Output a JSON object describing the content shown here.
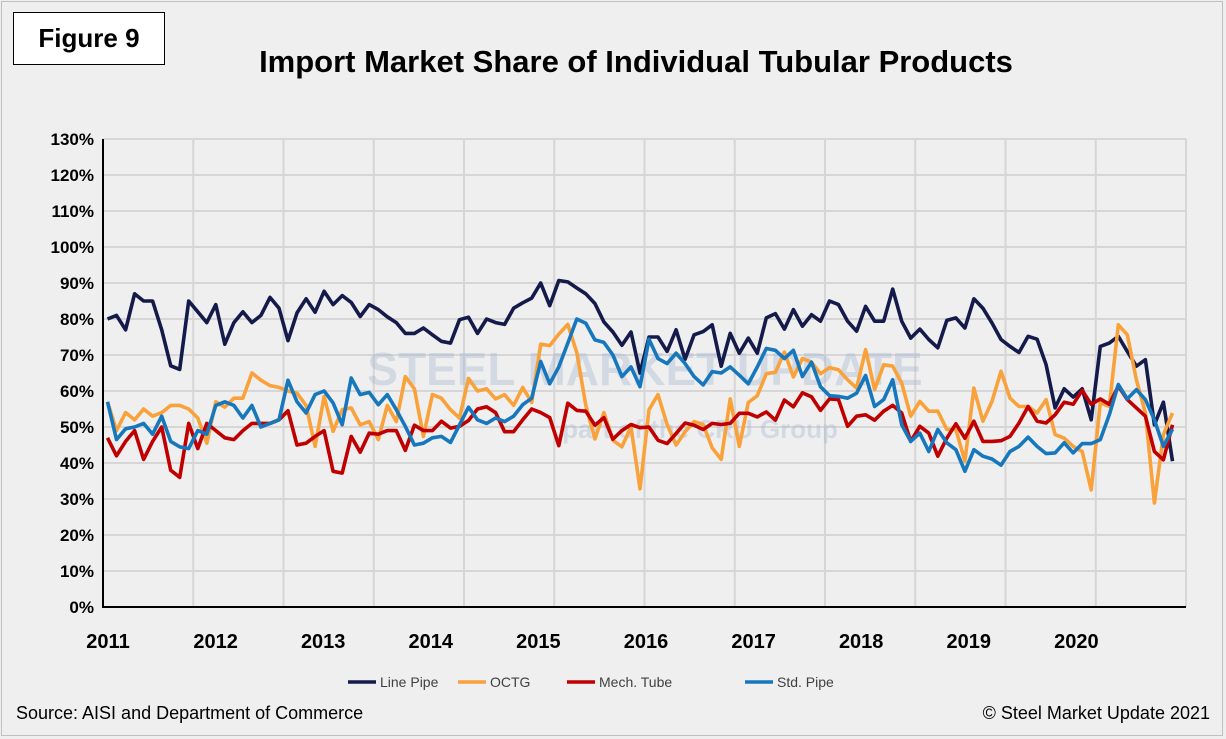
{
  "figure_label": "Figure 9",
  "footer": {
    "source": "Source: AISI and Department of Commerce",
    "copyright": "© Steel Market Update 2021"
  },
  "watermark": {
    "line1": "STEEL MARKET UPDATE",
    "line2": "part of the CRU Group"
  },
  "chart_data": {
    "type": "line",
    "title": "Import Market Share of Individual Tubular Products",
    "xlabel": "",
    "ylabel": "",
    "x_tick_labels": [
      "2011",
      "2012",
      "2013",
      "2014",
      "2015",
      "2016",
      "2017",
      "2018",
      "2019",
      "2020"
    ],
    "x_frequency": "monthly",
    "y_ticks": [
      "0%",
      "10%",
      "20%",
      "30%",
      "40%",
      "50%",
      "60%",
      "70%",
      "80%",
      "90%",
      "100%",
      "110%",
      "120%",
      "130%"
    ],
    "ylim": [
      0,
      130
    ],
    "grid": true,
    "legend_position": "bottom",
    "series": [
      {
        "name": "Line Pipe",
        "color": "#141a4a",
        "values": [
          80,
          81,
          77,
          87,
          85,
          85,
          77,
          67,
          66,
          85,
          82,
          79,
          84,
          73,
          79,
          82,
          79,
          81,
          86,
          83,
          74,
          81.7,
          85.6,
          81.9,
          87.7,
          84,
          86.5,
          84.6,
          80.7,
          84,
          82.6,
          80.6,
          79,
          76,
          76,
          77.5,
          75.6,
          73.8,
          73.3,
          79.8,
          80.5,
          76,
          80,
          79,
          78.5,
          83,
          84.5,
          85.8,
          90,
          83.7,
          90.7,
          90.3,
          88.6,
          87,
          84.3,
          79.2,
          76.4,
          72.7,
          76.4,
          65,
          75,
          75,
          71,
          77,
          68.8,
          75.6,
          76.5,
          78.4,
          66.9,
          76,
          70.5,
          74.7,
          70.5,
          80.3,
          81.5,
          77.2,
          82.6,
          78,
          81.2,
          79.4,
          85,
          84,
          79.4,
          76.6,
          83.5,
          79.4,
          79.4,
          88.3,
          79.4,
          74.7,
          77.2,
          74.3,
          72,
          79.6,
          80.3,
          77.5,
          85.6,
          83,
          78.9,
          74.3,
          72.4,
          70.7,
          75.2,
          74.4,
          67.3,
          55.3,
          60.6,
          58.3,
          60.6,
          52,
          72.4,
          73.3,
          75.2,
          71,
          66.9,
          68.7,
          50.6,
          56.9,
          40.5
        ]
      },
      {
        "name": "OCTG",
        "color": "#f9a13a",
        "values": [
          57,
          49,
          54,
          52,
          55,
          53,
          54,
          56,
          56,
          55,
          52.5,
          45.5,
          57,
          55.5,
          58,
          58,
          65,
          63,
          61.5,
          61,
          60,
          59.4,
          56,
          44.6,
          58.5,
          48.8,
          54.8,
          55.3,
          50.6,
          51.5,
          46.5,
          56,
          51.5,
          64,
          60.6,
          47.4,
          59,
          58,
          54.8,
          52.5,
          63.5,
          60,
          60.6,
          57.8,
          59,
          56,
          61,
          56.8,
          73,
          72.6,
          75.8,
          78.5,
          70.7,
          56,
          46.7,
          54,
          46.3,
          44.5,
          50,
          32.8,
          54.8,
          59,
          50.7,
          45,
          48.7,
          51.5,
          50.7,
          44.2,
          41,
          57.8,
          44.6,
          56.8,
          58.7,
          64.8,
          65.2,
          70.8,
          63.9,
          69,
          68,
          64.8,
          66.5,
          65.9,
          63.1,
          60.8,
          71.5,
          60.4,
          67.3,
          66.9,
          62.2,
          53,
          57.1,
          54.4,
          54.4,
          49.3,
          49.3,
          40.5,
          60.8,
          51.6,
          57.1,
          65.5,
          58,
          55.7,
          55.7,
          53.9,
          57.6,
          47.9,
          46.9,
          44.6,
          43.2,
          32.5,
          56.7,
          55.7,
          78.4,
          75.6,
          63.1,
          53.9,
          28.9,
          47.9,
          53.9
        ]
      },
      {
        "name": "Mech. Tube",
        "color": "#c00000",
        "values": [
          47,
          42,
          46,
          49,
          41,
          46,
          50,
          38,
          36,
          51,
          44,
          51,
          49,
          47,
          46.5,
          49,
          51,
          51,
          51,
          52,
          54.5,
          45,
          45.5,
          47.4,
          49,
          37.7,
          37.2,
          47.4,
          43,
          48.3,
          48,
          49,
          49,
          43.5,
          50.5,
          49,
          49,
          51.6,
          49.7,
          50.2,
          51.8,
          55,
          55.6,
          54,
          48.7,
          48.7,
          52,
          55,
          54,
          52.6,
          44.8,
          56.6,
          54.6,
          54.4,
          50.5,
          52.6,
          46.6,
          49,
          50.7,
          49.8,
          50,
          46.3,
          45.4,
          48.2,
          51.1,
          50.5,
          49.3,
          51,
          50.7,
          51,
          53.8,
          53.8,
          52.8,
          54.2,
          51.9,
          57.5,
          55.6,
          59.5,
          58.4,
          54.6,
          57.8,
          57.6,
          50.2,
          53,
          53.4,
          51.9,
          54.4,
          56,
          53.9,
          46,
          50.2,
          48.3,
          41.9,
          46.9,
          50.9,
          46.9,
          51.6,
          46,
          46,
          46.2,
          47.4,
          51.1,
          55.7,
          51.6,
          51.1,
          53.4,
          56.9,
          56.3,
          60.2,
          56.3,
          57.8,
          56.3,
          61.4,
          57.6,
          55.3,
          53,
          43.2,
          40.9,
          50.6
        ]
      },
      {
        "name": "Std. Pipe",
        "color": "#1677bd",
        "values": [
          57,
          46.5,
          49.5,
          50,
          51,
          48,
          53,
          46,
          44.5,
          44,
          49,
          48,
          56,
          57,
          56,
          52.5,
          56,
          50,
          51,
          52,
          63,
          57,
          53.9,
          59,
          60,
          56.7,
          50.6,
          63.6,
          59,
          59.6,
          56.2,
          59,
          54.8,
          50.2,
          45,
          45.5,
          47,
          47.4,
          45.7,
          50.6,
          55.5,
          52,
          51,
          52.5,
          51.5,
          53,
          56.2,
          58,
          68.2,
          62,
          66.7,
          73.3,
          80,
          78.8,
          74.2,
          73.5,
          70,
          64,
          66.7,
          61.2,
          74.4,
          69,
          67.6,
          70.5,
          67.6,
          64,
          61.7,
          65.4,
          65,
          66.7,
          64.4,
          62,
          66.7,
          71.8,
          71.3,
          69,
          71.3,
          64,
          68,
          61.2,
          58.7,
          58.5,
          58,
          59.4,
          64.3,
          55.7,
          57.6,
          63.1,
          50.6,
          46,
          48.3,
          43.2,
          49.3,
          45.6,
          43.7,
          37.7,
          43.7,
          41.9,
          41.1,
          39.4,
          43.2,
          44.6,
          47.2,
          44.6,
          42.6,
          42.8,
          45.6,
          42.8,
          45.4,
          45.4,
          46.5,
          53.4,
          61.8,
          57.8,
          60.4,
          57.6,
          52,
          44.6,
          49.4
        ]
      }
    ]
  }
}
